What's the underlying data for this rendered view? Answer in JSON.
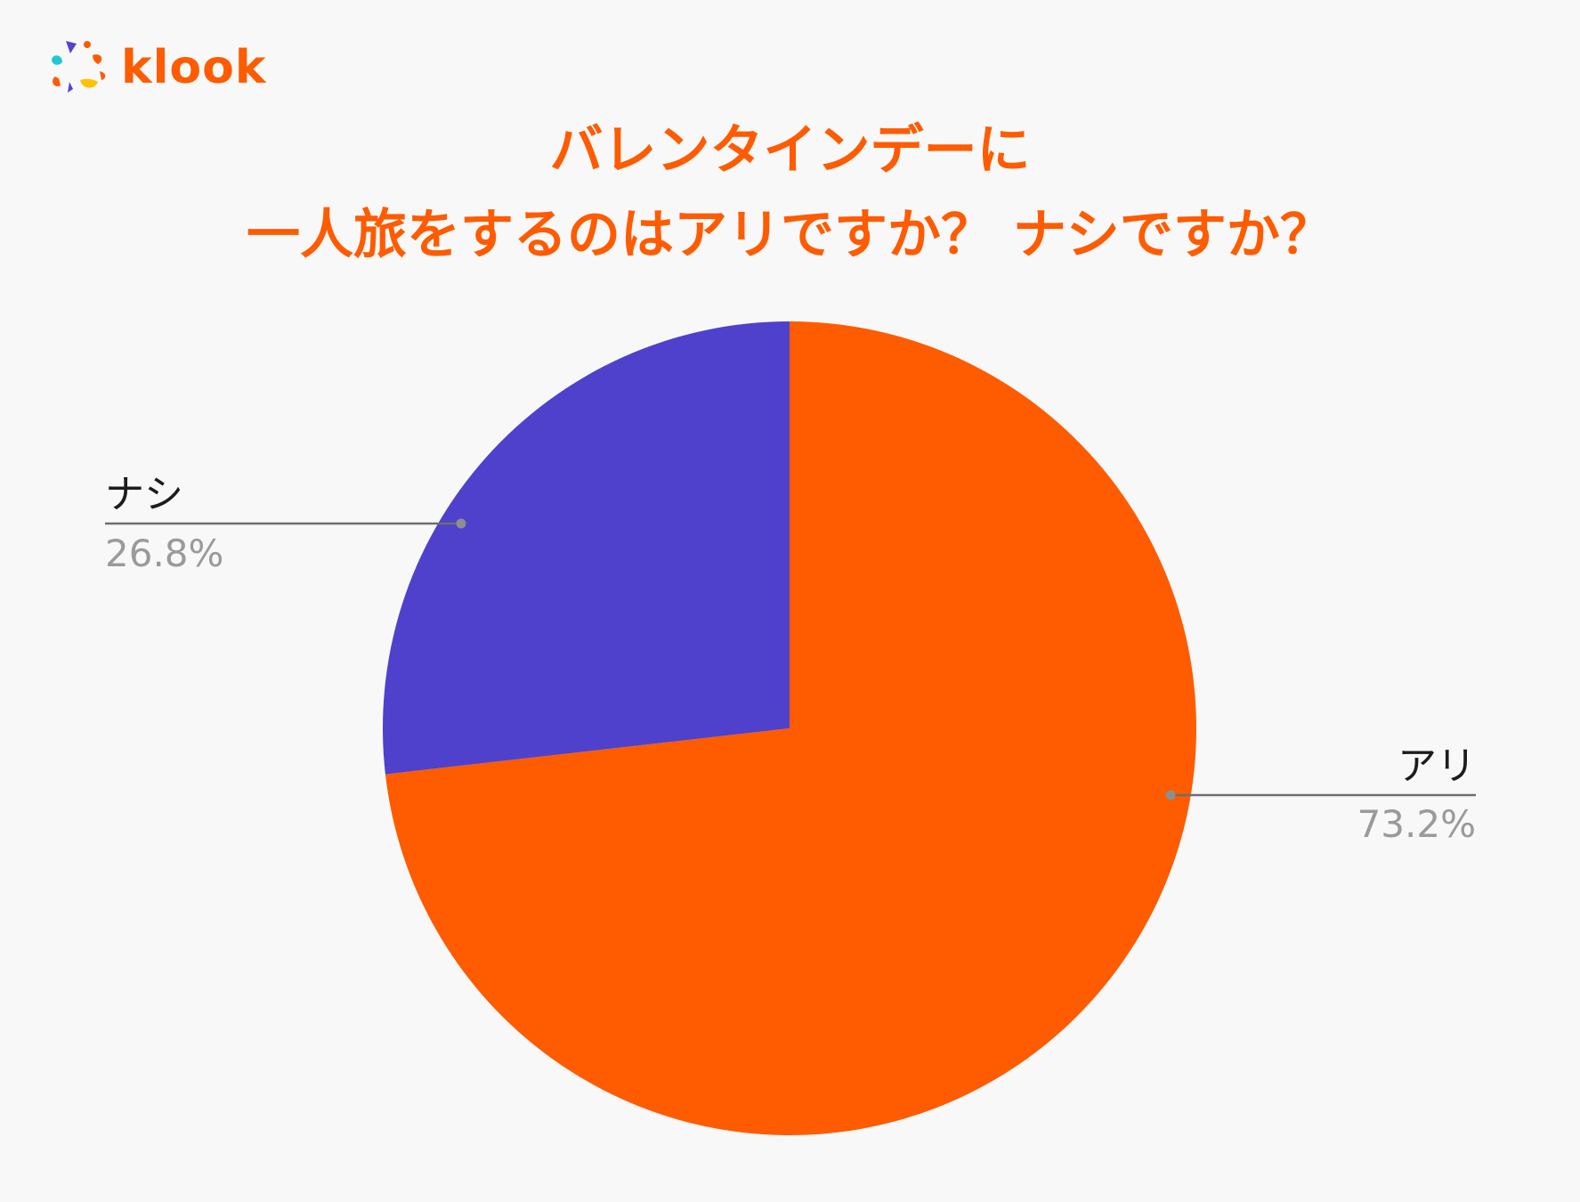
{
  "logo": {
    "text": "klook",
    "colors": [
      "#5b3fd0",
      "#ff5b00",
      "#22c6d6",
      "#ffc107"
    ]
  },
  "title_lines": [
    "バレンタインデーに",
    "一人旅をするのはアリですか？ ナシですか？"
  ],
  "chart_data": {
    "type": "pie",
    "title": "バレンタインデーに一人旅をするのはアリですか？ ナシですか？",
    "start": "12 o'clock, clockwise",
    "slices": [
      {
        "label": "アリ",
        "value": 73.2,
        "display": "73.2%",
        "color": "#ff5b00"
      },
      {
        "label": "ナシ",
        "value": 26.8,
        "display": "26.8%",
        "color": "#4f41cb"
      }
    ]
  }
}
